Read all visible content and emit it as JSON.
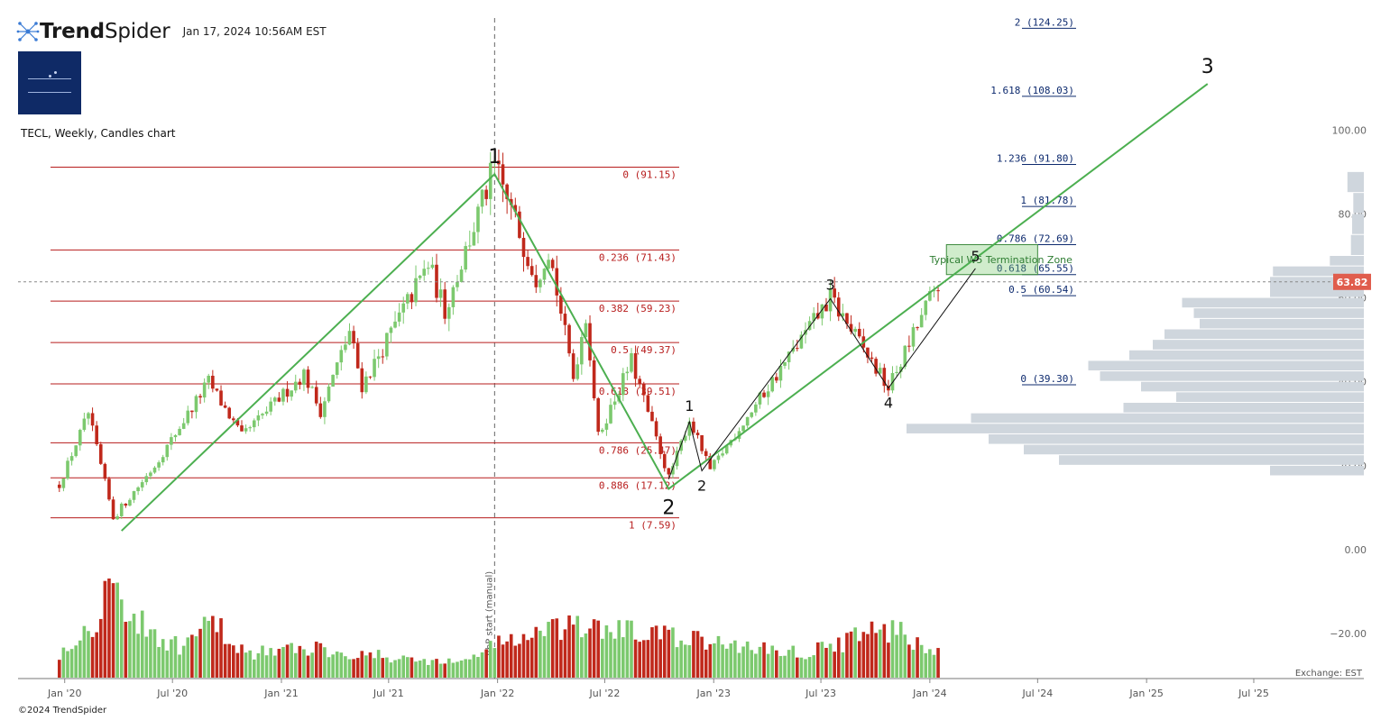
{
  "header": {
    "brand_bold": "Trend",
    "brand_light": "Spider",
    "timestamp": "Jan 17, 2024 10:56AM EST"
  },
  "chart_title": "TECL, Weekly, Candles chart",
  "copyright": "©2024 TrendSpider",
  "colors": {
    "up": "#7cc96e",
    "down": "#c0281b",
    "wave": "#4caf50",
    "fib_retrace": "#b71c1c",
    "fib_ext": "#0d2a6e",
    "vbp": "#cfd6dd",
    "last_price_bg": "#e05d4d"
  },
  "chart_data": {
    "type": "candlestick",
    "symbol": "TECL",
    "timeframe": "Weekly",
    "ylim": [
      -30,
      130
    ],
    "y_ticks": [
      "100.00",
      "80.00",
      "60.00",
      "40.00",
      "20.00",
      "0.00",
      "−20.00"
    ],
    "x_ticks": [
      "Jan '20",
      "Jul '20",
      "Jan '21",
      "Jul '21",
      "Jan '22",
      "Jul '22",
      "Jan '23",
      "Jul '23",
      "Jan '24",
      "Jul '24",
      "Jan '25",
      "Jul '25"
    ],
    "last_price": 63.82,
    "last_price_label": "63.82",
    "exchange_label": "Exchange: EST",
    "vbp_label": "VbP start (manual)",
    "price_path": [
      [
        "2019-12-23",
        15.5
      ],
      [
        "2020-02-10",
        32.5
      ],
      [
        "2020-03-23",
        7.6
      ],
      [
        "2020-06-01",
        20
      ],
      [
        "2020-08-31",
        40
      ],
      [
        "2020-10-26",
        27
      ],
      [
        "2021-02-08",
        42
      ],
      [
        "2021-03-08",
        33
      ],
      [
        "2021-04-26",
        52
      ],
      [
        "2021-05-17",
        39
      ],
      [
        "2021-09-06",
        68
      ],
      [
        "2021-10-04",
        57
      ],
      [
        "2021-12-27",
        91.15
      ],
      [
        "2022-03-07",
        65
      ],
      [
        "2022-03-28",
        72
      ],
      [
        "2022-05-09",
        41
      ],
      [
        "2022-05-30",
        56
      ],
      [
        "2022-06-20",
        27
      ],
      [
        "2022-08-15",
        45
      ],
      [
        "2022-10-17",
        17.12
      ],
      [
        "2022-11-21",
        31
      ],
      [
        "2022-12-26",
        19
      ],
      [
        "2023-07-17",
        60
      ],
      [
        "2023-10-23",
        38.5
      ],
      [
        "2024-01-15",
        63.82
      ]
    ],
    "volume_path": [
      [
        "2019-12-23",
        0.25
      ],
      [
        "2020-02-24",
        0.6
      ],
      [
        "2020-03-16",
        1.0
      ],
      [
        "2020-05-04",
        0.55
      ],
      [
        "2020-07-13",
        0.3
      ],
      [
        "2020-09-07",
        0.55
      ],
      [
        "2020-11-02",
        0.25
      ],
      [
        "2021-03-01",
        0.3
      ],
      [
        "2021-07-05",
        0.2
      ],
      [
        "2021-11-01",
        0.15
      ],
      [
        "2021-12-27",
        0.35
      ],
      [
        "2022-05-09",
        0.5
      ],
      [
        "2022-09-05",
        0.45
      ],
      [
        "2022-12-26",
        0.35
      ],
      [
        "2023-06-05",
        0.25
      ],
      [
        "2023-10-23",
        0.5
      ],
      [
        "2024-01-15",
        0.25
      ]
    ],
    "fib_retracement": [
      {
        "label": "0 (91.15)",
        "value": 91.15
      },
      {
        "label": "0.236 (71.43)",
        "value": 71.43
      },
      {
        "label": "0.382 (59.23)",
        "value": 59.23
      },
      {
        "label": "0.5 (49.37)",
        "value": 49.37
      },
      {
        "label": "0.618 (39.51)",
        "value": 39.51
      },
      {
        "label": "0.786 (25.47)",
        "value": 25.47
      },
      {
        "label": "0.886 (17.12)",
        "value": 17.12
      },
      {
        "label": "1 (7.59)",
        "value": 7.59
      }
    ],
    "fib_extension": [
      {
        "label": "2 (124.25)",
        "value": 124.25
      },
      {
        "label": "1.618 (108.03)",
        "value": 108.03
      },
      {
        "label": "1.236 (91.80)",
        "value": 91.8
      },
      {
        "label": "1 (81.78)",
        "value": 81.78
      },
      {
        "label": "0.786 (72.69)",
        "value": 72.69
      },
      {
        "label": "0.618 (65.55)",
        "value": 65.55
      },
      {
        "label": "0.5 (60.54)",
        "value": 60.54
      },
      {
        "label": "0 (39.30)",
        "value": 39.3
      }
    ],
    "primary_waves": [
      {
        "label": "",
        "date": "2020-04-06",
        "price": 4.5
      },
      {
        "label": "1",
        "date": "2021-12-27",
        "price": 89.5
      },
      {
        "label": "2",
        "date": "2022-10-17",
        "price": 14.5
      },
      {
        "label": "3",
        "date": "2025-04-14",
        "price": 111
      }
    ],
    "minor_waves": [
      {
        "label": "",
        "date": "2022-10-17",
        "price": 16.8
      },
      {
        "label": "1",
        "date": "2022-11-21",
        "price": 30.5
      },
      {
        "label": "2",
        "date": "2022-12-12",
        "price": 18.8
      },
      {
        "label": "3",
        "date": "2023-07-17",
        "price": 59.8
      },
      {
        "label": "4",
        "date": "2023-10-23",
        "price": 38.5
      },
      {
        "label": "5",
        "date": "2024-03-18",
        "price": 67
      }
    ],
    "w5_zone": {
      "label": "Typical W5 Termination Zone",
      "from": 65.55,
      "to": 72.69,
      "start": "2024-01-29",
      "end": "2024-07-01"
    },
    "volume_by_price": [
      {
        "from": 85,
        "to": 90,
        "size": 0.28
      },
      {
        "from": 80,
        "to": 85,
        "size": 0.18
      },
      {
        "from": 75,
        "to": 80,
        "size": 0.2
      },
      {
        "from": 70,
        "to": 75,
        "size": 0.22
      },
      {
        "from": 67.5,
        "to": 70,
        "size": 0.58
      },
      {
        "from": 65,
        "to": 67.5,
        "size": 1.55
      },
      {
        "from": 60,
        "to": 65,
        "size": 1.6
      },
      {
        "from": 57.5,
        "to": 60,
        "size": 3.1
      },
      {
        "from": 55,
        "to": 57.5,
        "size": 2.9
      },
      {
        "from": 52.5,
        "to": 55,
        "size": 2.8
      },
      {
        "from": 50,
        "to": 52.5,
        "size": 3.4
      },
      {
        "from": 47.5,
        "to": 50,
        "size": 3.6
      },
      {
        "from": 45,
        "to": 47.5,
        "size": 4.0
      },
      {
        "from": 42.5,
        "to": 45,
        "size": 4.7
      },
      {
        "from": 40,
        "to": 42.5,
        "size": 4.5
      },
      {
        "from": 37.5,
        "to": 40,
        "size": 3.8
      },
      {
        "from": 35,
        "to": 37.5,
        "size": 3.2
      },
      {
        "from": 32.5,
        "to": 35,
        "size": 4.1
      },
      {
        "from": 30,
        "to": 32.5,
        "size": 6.7
      },
      {
        "from": 27.5,
        "to": 30,
        "size": 7.8
      },
      {
        "from": 25,
        "to": 27.5,
        "size": 6.4
      },
      {
        "from": 22.5,
        "to": 25,
        "size": 5.8
      },
      {
        "from": 20,
        "to": 22.5,
        "size": 5.2
      },
      {
        "from": 17.5,
        "to": 20,
        "size": 1.6
      }
    ]
  }
}
